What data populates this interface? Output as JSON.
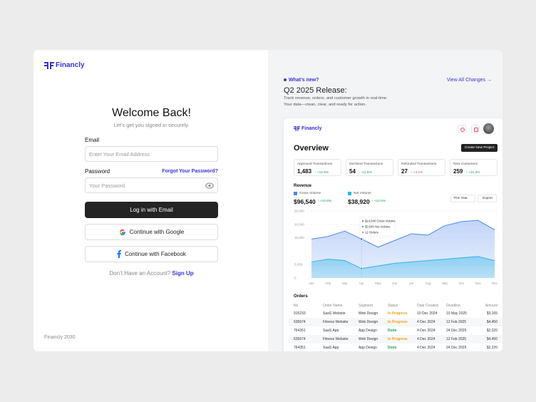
{
  "login": {
    "brand": "Financly",
    "title": "Welcome Back!",
    "subtitle": "Let’s get you signed in securely.",
    "email_label": "Email",
    "email_placeholder": "Enter Your Email Address",
    "password_label": "Password",
    "forgot_link": "Forgot Your Password?",
    "password_placeholder": "Your Password",
    "login_button": "Log in with Email",
    "google_button": "Continue with Google",
    "facebook_button": "Continue with Facebook",
    "signup_prompt": "Don’t Have an Account?",
    "signup_link": "Sign Up",
    "footer": "Financly 2030"
  },
  "whats_new": {
    "badge": "What’s new?",
    "link": "View All Changes →",
    "title": "Q2 2025 Release:",
    "description_lines": [
      "Track revenue, orders, and customer growth in real-time.",
      "Your data—clean, clear, and ready for action."
    ]
  },
  "dashboard": {
    "brand": "Financly",
    "title": "Overview",
    "create_button": "Create New Project",
    "stats": [
      {
        "label": "Approved Transactions",
        "value": "1,483",
        "change": "↑ +12.5%"
      },
      {
        "label": "Declined Transactions",
        "value": "54",
        "change": "↓ -12.5%"
      },
      {
        "label": "Refunded Transactions",
        "value": "27",
        "change": "↑ +4.1%"
      },
      {
        "label": "New Customers",
        "value": "259",
        "change": "↑ +41.4%"
      }
    ],
    "revenue_title": "Revenue",
    "totals": [
      {
        "value": "$96,540",
        "change": "↑ +10.6%"
      },
      {
        "value": "$38,920",
        "change": "↑ +12.5%"
      }
    ],
    "period": "This Year",
    "export": "Export",
    "revenue_chart": {
      "type": "area",
      "x": [
        "Jan",
        "Feb",
        "Mar",
        "Apr",
        "May",
        "Jun",
        "Jul",
        "Aug",
        "Sep",
        "Oct",
        "Nov",
        "Dec"
      ],
      "series": [
        {
          "name": "Gross Volume",
          "color": "#4f86ec",
          "values": [
            14500,
            15500,
            17500,
            14540,
            11500,
            14000,
            16500,
            16000,
            19500,
            21000,
            21500,
            18000
          ]
        },
        {
          "name": "Net Volume",
          "color": "#2fb3e8",
          "values": [
            6000,
            7000,
            6500,
            3540,
            4500,
            5500,
            6000,
            6500,
            7000,
            7500,
            8000,
            6500
          ]
        }
      ],
      "ylim": [
        0,
        25000
      ],
      "yticks": [
        {
          "value": 25000,
          "label": "25,000"
        },
        {
          "value": 20000,
          "label": "20,000"
        },
        {
          "value": 15000,
          "label": "15,000"
        },
        {
          "value": 5000,
          "label": "5,000"
        },
        0
      ],
      "grid": true,
      "tooltip": [
        "$14,540 Gross Volume",
        "$3,540 Net Volume",
        "12 Orders"
      ]
    },
    "orders": {
      "title": "Orders",
      "columns": [
        "No",
        "Order Name",
        "Segment",
        "Status",
        "Date Created",
        "Deadline",
        "Amount"
      ],
      "rows": [
        [
          "915233",
          "SaaS Website",
          "Web Design",
          "In Progress",
          "10 Dec 2024",
          "10 May 2025",
          "$3,165"
        ],
        [
          "635674",
          "Fitness Website",
          "Web Design",
          "In Progress",
          "4 Dec 2024",
          "12 Feb 2025",
          "$4,450"
        ],
        [
          "764351",
          "SaaS App",
          "App Design",
          "Done",
          "4 Dec 2024",
          "24 Dec 2025",
          "$2,220"
        ],
        [
          "635674",
          "Fitness Website",
          "Web Design",
          "In Progress",
          "4 Dec 2024",
          "12 Feb 2025",
          "$4,450"
        ],
        [
          "764351",
          "SaaS App",
          "App Design",
          "Done",
          "4 Dec 2024",
          "24 Dec 2025",
          "$2,220"
        ]
      ]
    }
  }
}
